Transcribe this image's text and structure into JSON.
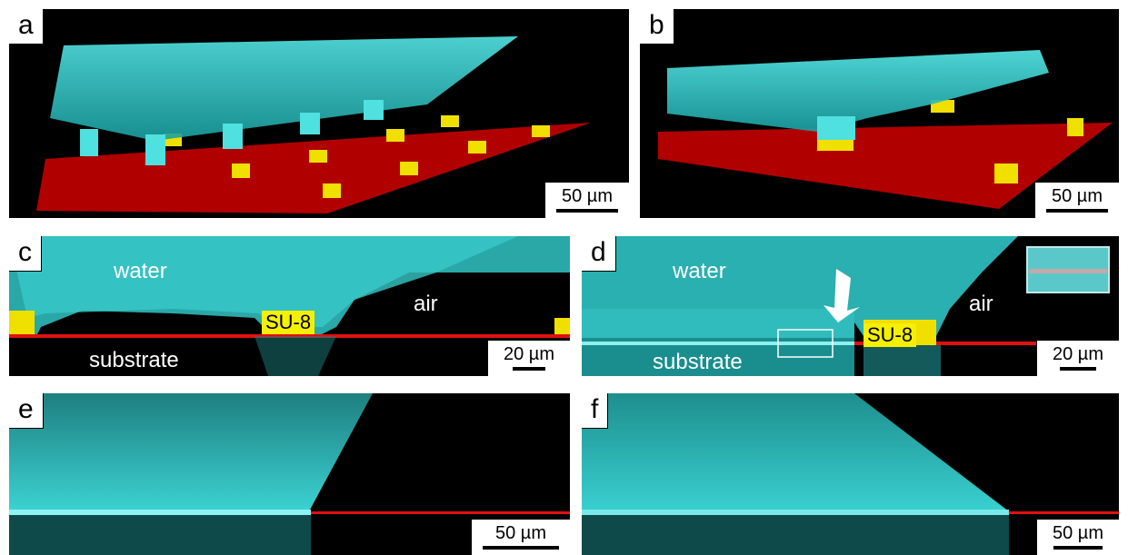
{
  "panels": {
    "a": {
      "letter": "a",
      "scale": "50 µm"
    },
    "b": {
      "letter": "b",
      "scale": "50 µm"
    },
    "c": {
      "letter": "c",
      "scale": "20 µm",
      "water": "water",
      "air": "air",
      "su8": "SU-8",
      "substrate": "substrate"
    },
    "d": {
      "letter": "d",
      "scale": "20 µm",
      "water": "water",
      "air": "air",
      "su8": "SU-8",
      "substrate": "substrate"
    },
    "e": {
      "letter": "e",
      "scale": "50 µm"
    },
    "f": {
      "letter": "f",
      "scale": "50 µm"
    }
  },
  "colors": {
    "water": "#33d6d6",
    "substrate": "#e01010",
    "pillar": "#f2e600",
    "background": "#000000"
  }
}
